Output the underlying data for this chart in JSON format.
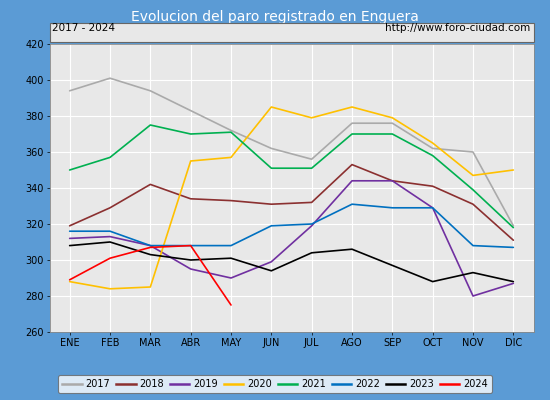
{
  "title": "Evolucion del paro registrado en Enguera",
  "title_color": "#ffffff",
  "title_bg": "#5b9bd5",
  "subtitle_left": "2017 - 2024",
  "subtitle_right": "http://www.foro-ciudad.com",
  "months": [
    "ENE",
    "FEB",
    "MAR",
    "ABR",
    "MAY",
    "JUN",
    "JUL",
    "AGO",
    "SEP",
    "OCT",
    "NOV",
    "DIC"
  ],
  "ylim": [
    260,
    420
  ],
  "yticks": [
    260,
    280,
    300,
    320,
    340,
    360,
    380,
    400,
    420
  ],
  "series": {
    "2017": {
      "color": "#aaaaaa",
      "values": [
        394,
        401,
        394,
        383,
        372,
        362,
        356,
        376,
        376,
        362,
        360,
        319
      ]
    },
    "2018": {
      "color": "#8b3030",
      "values": [
        319,
        329,
        342,
        334,
        333,
        331,
        332,
        353,
        344,
        341,
        331,
        311
      ]
    },
    "2019": {
      "color": "#7030a0",
      "values": [
        312,
        313,
        308,
        295,
        290,
        299,
        319,
        344,
        344,
        329,
        280,
        287
      ]
    },
    "2020": {
      "color": "#ffc000",
      "values": [
        288,
        284,
        285,
        355,
        357,
        385,
        379,
        385,
        379,
        365,
        347,
        350
      ]
    },
    "2021": {
      "color": "#00b050",
      "values": [
        350,
        357,
        375,
        370,
        371,
        351,
        351,
        370,
        370,
        358,
        339,
        318
      ]
    },
    "2022": {
      "color": "#0070c0",
      "values": [
        316,
        316,
        308,
        308,
        308,
        319,
        320,
        331,
        329,
        329,
        308,
        307
      ]
    },
    "2023": {
      "color": "#000000",
      "values": [
        308,
        310,
        303,
        300,
        301,
        294,
        304,
        306,
        297,
        288,
        293,
        288
      ]
    },
    "2024": {
      "color": "#ff0000",
      "values": [
        289,
        301,
        307,
        308,
        275,
        null,
        null,
        null,
        null,
        null,
        null,
        null
      ]
    }
  },
  "fig_width": 5.5,
  "fig_height": 4.0,
  "dpi": 100
}
